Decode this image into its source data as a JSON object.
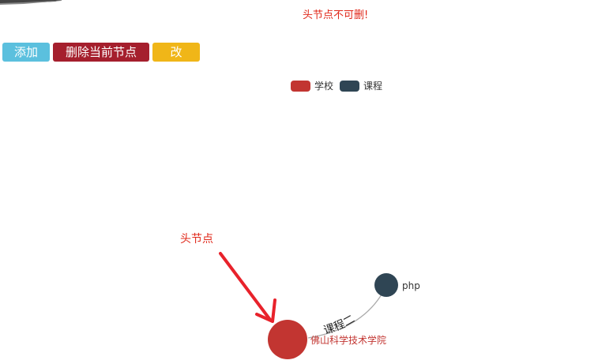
{
  "warning_text": "头节点不可删!",
  "toolbar": {
    "add_label": "添加",
    "delete_label": "删除当前节点",
    "edit_label": "改"
  },
  "colors": {
    "add": "#5bc0de",
    "delete": "#a51f2d",
    "edit": "#f0b618",
    "school": "#c23531",
    "course": "#2f4554",
    "annotation": "#e0281a"
  },
  "legend": [
    {
      "label": "学校",
      "category": "school"
    },
    {
      "label": "课程",
      "category": "course"
    }
  ],
  "graph": {
    "nodes": [
      {
        "name": "佛山科学技术学院",
        "category": "school",
        "is_head": true
      },
      {
        "name": "php",
        "category": "course",
        "is_head": false
      }
    ],
    "links": [
      {
        "source": "佛山科学技术学院",
        "target": "php",
        "label": "课程二"
      }
    ]
  },
  "annotation": {
    "text": "头节点",
    "shape": "red-arrow",
    "points_to": "佛山科学技术学院"
  }
}
